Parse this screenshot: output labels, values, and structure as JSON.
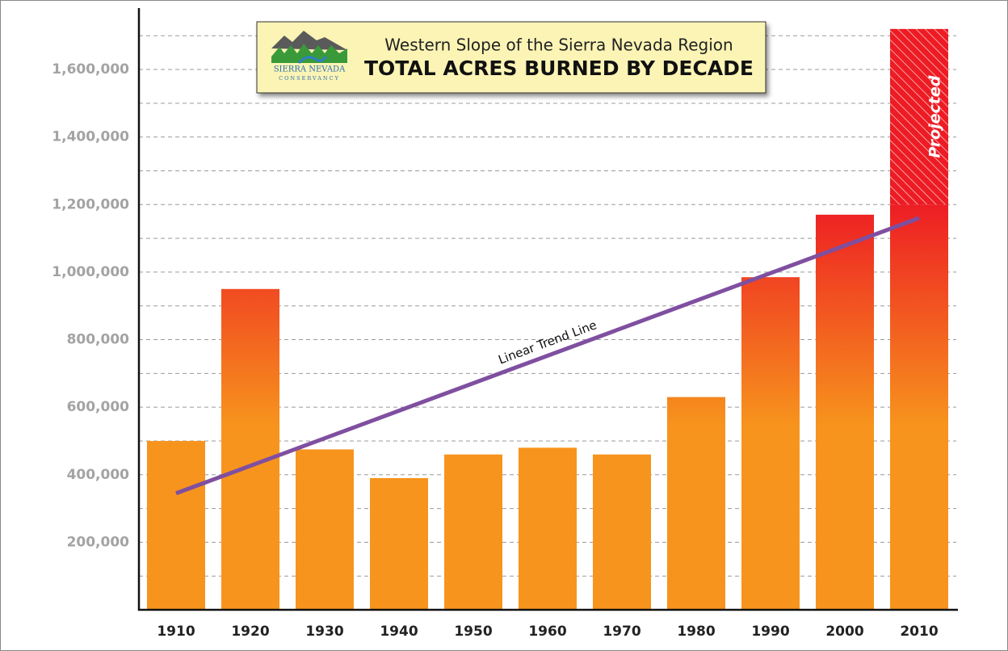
{
  "chart_data": {
    "type": "bar",
    "title": "Western Slope of the Sierra Nevada Region",
    "subtitle": "TOTAL ACRES BURNED BY DECADE",
    "logo_text": [
      "SIERRA NEVADA",
      "CONSERVANCY"
    ],
    "categories": [
      "1910",
      "1920",
      "1930",
      "1940",
      "1950",
      "1960",
      "1970",
      "1980",
      "1990",
      "2000",
      "2010"
    ],
    "values": [
      500000,
      950000,
      475000,
      390000,
      460000,
      480000,
      460000,
      630000,
      985000,
      1170000,
      1200000
    ],
    "projected_values": [
      null,
      null,
      null,
      null,
      null,
      null,
      null,
      null,
      null,
      null,
      520000
    ],
    "projected_label": "Projected",
    "color": "#f7941d",
    "color_top": "#ed1c24",
    "trend": {
      "label": "Linear Trend Line",
      "color": "#7f4fa0",
      "values": [
        345000,
        1160000
      ]
    },
    "ylim": [
      0,
      1750000
    ],
    "yticks": [
      {
        "value": 200000,
        "label": "200,000"
      },
      {
        "value": 400000,
        "label": "400,000"
      },
      {
        "value": 600000,
        "label": "600,000"
      },
      {
        "value": 800000,
        "label": "800,000"
      },
      {
        "value": 1000000,
        "label": "1,000,000"
      },
      {
        "value": 1200000,
        "label": "1,200,000"
      },
      {
        "value": 1400000,
        "label": "1,400,000"
      },
      {
        "value": 1600000,
        "label": "1,600,000"
      }
    ],
    "minor_yticks": [
      100000,
      300000,
      500000,
      700000,
      900000,
      1100000,
      1300000,
      1500000,
      1700000
    ],
    "grid": true
  }
}
